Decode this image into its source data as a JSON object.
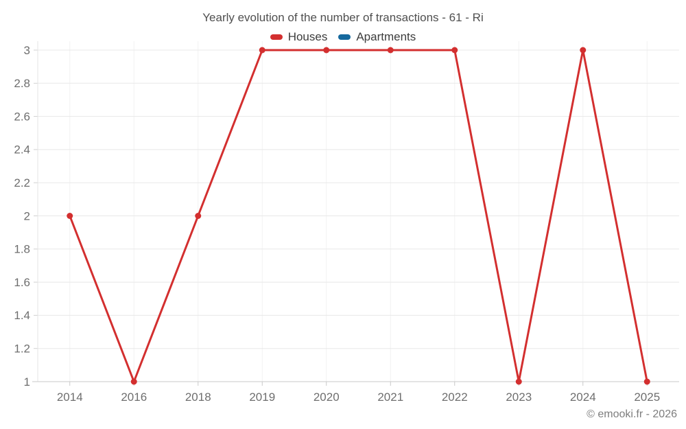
{
  "chart": {
    "title": "Yearly evolution of the number of transactions - 61 - Ri",
    "watermark": "© emooki.fr - 2026"
  },
  "legend": {
    "items": [
      {
        "label": "Houses",
        "color": "#d32f2f"
      },
      {
        "label": "Apartments",
        "color": "#16699e"
      }
    ]
  },
  "chart_data": {
    "type": "line",
    "title": "Yearly evolution of the number of transactions - 61 - Ri",
    "categories": [
      "2014",
      "2016",
      "2018",
      "2019",
      "2020",
      "2021",
      "2022",
      "2023",
      "2024",
      "2025"
    ],
    "series": [
      {
        "name": "Houses",
        "color": "#d32f2f",
        "values": [
          2,
          1,
          2,
          3,
          3,
          3,
          3,
          1,
          3,
          1
        ]
      },
      {
        "name": "Apartments",
        "color": "#16699e",
        "values": []
      }
    ],
    "xlabel": "",
    "ylabel": "",
    "ylim": [
      1,
      3
    ],
    "ytick_step": 0.2,
    "grid": true,
    "legend_position": "top",
    "marker_radius": 4.5,
    "line_width": 3
  },
  "style": {
    "h_grid_color": "#e8e8e8",
    "v_grid_color": "#f2f2f2",
    "x_axis_color": "#c8c8c8",
    "y_axis_color": "#e4e4e4",
    "tick_color": "#d0d0d0",
    "label_color": "#6e6e6e"
  }
}
